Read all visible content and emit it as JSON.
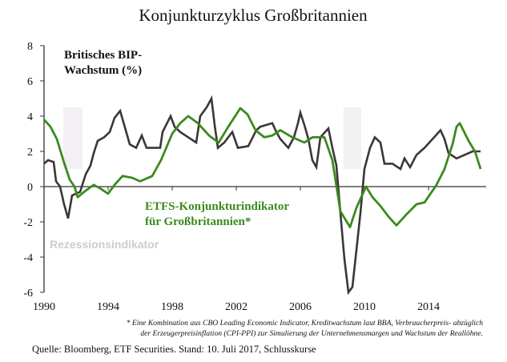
{
  "chart_data": {
    "type": "line",
    "title": "Konjunkturzyklus Großbritannien",
    "xlabel": "",
    "ylabel": "",
    "xlim": [
      1990,
      2017.6
    ],
    "ylim": [
      -6,
      8
    ],
    "x_ticks": [
      1990,
      1994,
      1998,
      2002,
      2006,
      2010,
      2014
    ],
    "y_ticks": [
      -6,
      -4,
      -2,
      0,
      2,
      4,
      6,
      8
    ],
    "grid": false,
    "annotations": {
      "bip": [
        "Britisches BIP-",
        "Wachstum (%)"
      ],
      "indicator": [
        "ETFS-Konjunkturindikator",
        "für Großbritannien*"
      ],
      "recession": "Rezessionsindikator"
    },
    "recessions": [
      [
        1991.2,
        1992.4
      ],
      [
        2008.7,
        2009.8
      ]
    ],
    "recession_band": [
      1,
      4.5
    ],
    "series": [
      {
        "name": "Britisches BIP-Wachstum (%)",
        "color": "#3b3637",
        "points": [
          [
            1990,
            1.3
          ],
          [
            1990.25,
            1.5
          ],
          [
            1990.6,
            1.4
          ],
          [
            1990.75,
            0.3
          ],
          [
            1991,
            0
          ],
          [
            1991.25,
            -1
          ],
          [
            1991.5,
            -1.8
          ],
          [
            1991.75,
            -0.5
          ],
          [
            1992.25,
            -0.3
          ],
          [
            1992.6,
            0.7
          ],
          [
            1992.9,
            1.2
          ],
          [
            1993.1,
            1.9
          ],
          [
            1993.35,
            2.6
          ],
          [
            1993.75,
            2.8
          ],
          [
            1994.1,
            3.1
          ],
          [
            1994.4,
            3.9
          ],
          [
            1994.75,
            4.3
          ],
          [
            1995.1,
            3.2
          ],
          [
            1995.35,
            2.4
          ],
          [
            1995.75,
            2.2
          ],
          [
            1996.1,
            2.9
          ],
          [
            1996.4,
            2.2
          ],
          [
            1997.25,
            2.2
          ],
          [
            1997.4,
            3.1
          ],
          [
            1997.9,
            4.0
          ],
          [
            1998.15,
            3.4
          ],
          [
            1998.5,
            3.1
          ],
          [
            1999,
            2.8
          ],
          [
            1999.5,
            2.5
          ],
          [
            1999.75,
            4.0
          ],
          [
            2000.15,
            4.5
          ],
          [
            2000.45,
            5.0
          ],
          [
            2000.65,
            3.5
          ],
          [
            2000.85,
            2.2
          ],
          [
            2001.25,
            2.5
          ],
          [
            2001.75,
            3.1
          ],
          [
            2002.1,
            2.2
          ],
          [
            2002.75,
            2.3
          ],
          [
            2003.25,
            3.2
          ],
          [
            2003.5,
            3.4
          ],
          [
            2004.25,
            3.6
          ],
          [
            2004.5,
            3.1
          ],
          [
            2004.75,
            2.7
          ],
          [
            2005.25,
            2.2
          ],
          [
            2005.6,
            2.8
          ],
          [
            2005.85,
            3.6
          ],
          [
            2006,
            4.2
          ],
          [
            2006.25,
            3.5
          ],
          [
            2006.5,
            2.7
          ],
          [
            2006.75,
            1.5
          ],
          [
            2007,
            1.1
          ],
          [
            2007.25,
            2.8
          ],
          [
            2007.75,
            3.3
          ],
          [
            2008,
            2.2
          ],
          [
            2008.25,
            1.2
          ],
          [
            2008.5,
            -1.5
          ],
          [
            2008.75,
            -4.1
          ],
          [
            2009,
            -6
          ],
          [
            2009.25,
            -5.7
          ],
          [
            2009.5,
            -3.6
          ],
          [
            2009.75,
            -1.5
          ],
          [
            2010,
            1.0
          ],
          [
            2010.35,
            2.2
          ],
          [
            2010.65,
            2.8
          ],
          [
            2011,
            2.5
          ],
          [
            2011.25,
            1.3
          ],
          [
            2011.75,
            1.3
          ],
          [
            2012.25,
            1.0
          ],
          [
            2012.5,
            1.6
          ],
          [
            2012.85,
            1.1
          ],
          [
            2013.25,
            1.8
          ],
          [
            2013.5,
            2.0
          ],
          [
            2013.75,
            2.2
          ],
          [
            2014.25,
            2.7
          ],
          [
            2014.75,
            3.2
          ],
          [
            2015,
            2.7
          ],
          [
            2015.25,
            1.9
          ],
          [
            2015.75,
            1.6
          ],
          [
            2016.25,
            1.8
          ],
          [
            2016.75,
            2.0
          ],
          [
            2017.25,
            2.0
          ]
        ]
      },
      {
        "name": "ETFS-Konjunkturindikator für Großbritannien*",
        "color": "#3a8a1e",
        "points": [
          [
            1990,
            3.8
          ],
          [
            1990.4,
            3.4
          ],
          [
            1990.8,
            2.7
          ],
          [
            1991.2,
            1.5
          ],
          [
            1991.6,
            0.4
          ],
          [
            1991.9,
            0
          ],
          [
            1992.1,
            -0.6
          ],
          [
            1992.5,
            -0.3
          ],
          [
            1993.1,
            0.1
          ],
          [
            1993.5,
            -0.1
          ],
          [
            1994,
            -0.4
          ],
          [
            1994.4,
            0.1
          ],
          [
            1994.9,
            0.6
          ],
          [
            1995.5,
            0.5
          ],
          [
            1996,
            0.3
          ],
          [
            1996.75,
            0.6
          ],
          [
            1997.3,
            1.5
          ],
          [
            1998,
            3.0
          ],
          [
            1998.5,
            3.6
          ],
          [
            1999,
            4.0
          ],
          [
            1999.6,
            3.6
          ],
          [
            2000.3,
            2.9
          ],
          [
            2000.9,
            2.5
          ],
          [
            2001.5,
            3.4
          ],
          [
            2002.25,
            4.45
          ],
          [
            2002.7,
            4.1
          ],
          [
            2003.2,
            3.2
          ],
          [
            2003.75,
            2.8
          ],
          [
            2004.25,
            2.9
          ],
          [
            2004.75,
            3.2
          ],
          [
            2005.5,
            2.8
          ],
          [
            2006.25,
            2.5
          ],
          [
            2006.75,
            2.8
          ],
          [
            2007.5,
            2.8
          ],
          [
            2008,
            1.5
          ],
          [
            2008.5,
            -1.4
          ],
          [
            2009.1,
            -2.3
          ],
          [
            2009.5,
            -1.2
          ],
          [
            2009.8,
            -0.6
          ],
          [
            2010.1,
            0
          ],
          [
            2010.5,
            -0.6
          ],
          [
            2011,
            -1.1
          ],
          [
            2011.5,
            -1.7
          ],
          [
            2012,
            -2.2
          ],
          [
            2012.6,
            -1.6
          ],
          [
            2013.25,
            -1.0
          ],
          [
            2013.75,
            -0.9
          ],
          [
            2014.5,
            0.1
          ],
          [
            2015,
            1.0
          ],
          [
            2015.5,
            2.4
          ],
          [
            2015.75,
            3.4
          ],
          [
            2015.95,
            3.6
          ],
          [
            2016.5,
            2.6
          ],
          [
            2016.9,
            2.0
          ],
          [
            2017.25,
            1.0
          ]
        ]
      }
    ]
  },
  "footnote": [
    "* Eine Kombination aus CBO Leading Economic Indicator, Kreditwachstum laut BBA, Verbraucherpreis- abzüglich",
    "der Erzeugerpreisinflation (CPI-PPI) zur Simulierung der Unternehmensmargen und Wachstum der Reallöhne."
  ],
  "source": "Quelle: Bloomberg, ETF Securities. Stand: 10. Juli 2017, Schlusskurse"
}
